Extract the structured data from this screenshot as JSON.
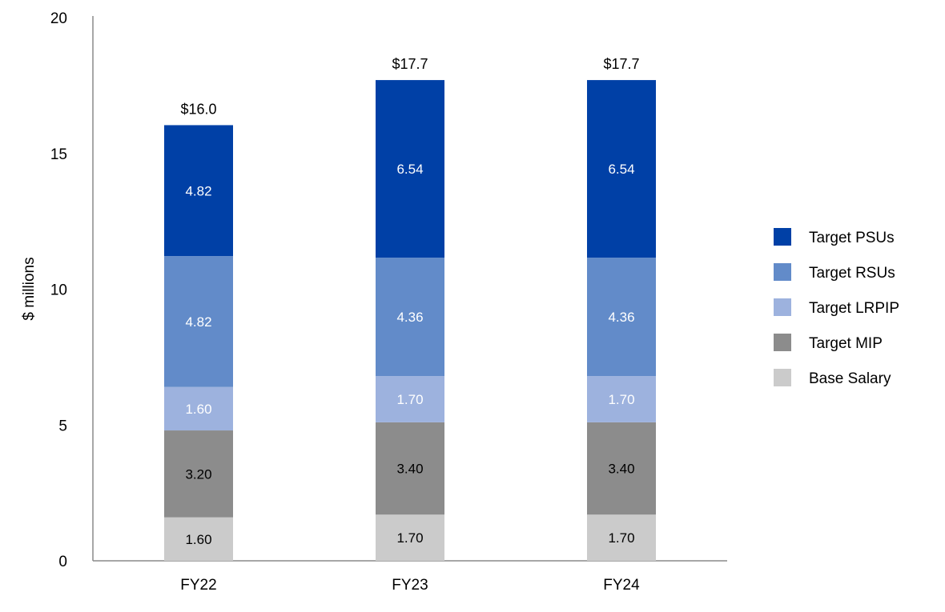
{
  "chart_data": {
    "type": "bar",
    "stacked": true,
    "title": "",
    "xlabel": "",
    "ylabel": "$ millions",
    "ylim": [
      0,
      20
    ],
    "yticks": [
      0,
      5,
      10,
      15,
      20
    ],
    "categories": [
      "FY22",
      "FY23",
      "FY24"
    ],
    "totals": [
      "$16.0",
      "$17.7",
      "$17.7"
    ],
    "series": [
      {
        "name": "Base Salary",
        "color": "#cbcbcb",
        "label_color": "#000000",
        "values": [
          1.6,
          1.7,
          1.7
        ],
        "labels": [
          "1.60",
          "1.70",
          "1.70"
        ]
      },
      {
        "name": "Target MIP",
        "color": "#8c8c8c",
        "label_color": "#000000",
        "values": [
          3.2,
          3.4,
          3.4
        ],
        "labels": [
          "3.20",
          "3.40",
          "3.40"
        ]
      },
      {
        "name": "Target LRPIP",
        "color": "#9db2de",
        "label_color": "#ffffff",
        "values": [
          1.6,
          1.7,
          1.7
        ],
        "labels": [
          "1.60",
          "1.70",
          "1.70"
        ]
      },
      {
        "name": "Target RSUs",
        "color": "#628bc9",
        "label_color": "#ffffff",
        "values": [
          4.82,
          4.36,
          4.36
        ],
        "labels": [
          "4.82",
          "4.36",
          "4.36"
        ]
      },
      {
        "name": "Target PSUs",
        "color": "#0040a6",
        "label_color": "#ffffff",
        "values": [
          4.82,
          6.54,
          6.54
        ],
        "labels": [
          "4.82",
          "6.54",
          "6.54"
        ]
      }
    ],
    "legend_order": [
      "Target PSUs",
      "Target RSUs",
      "Target LRPIP",
      "Target MIP",
      "Base Salary"
    ],
    "legend_position": "right",
    "grid": false
  }
}
